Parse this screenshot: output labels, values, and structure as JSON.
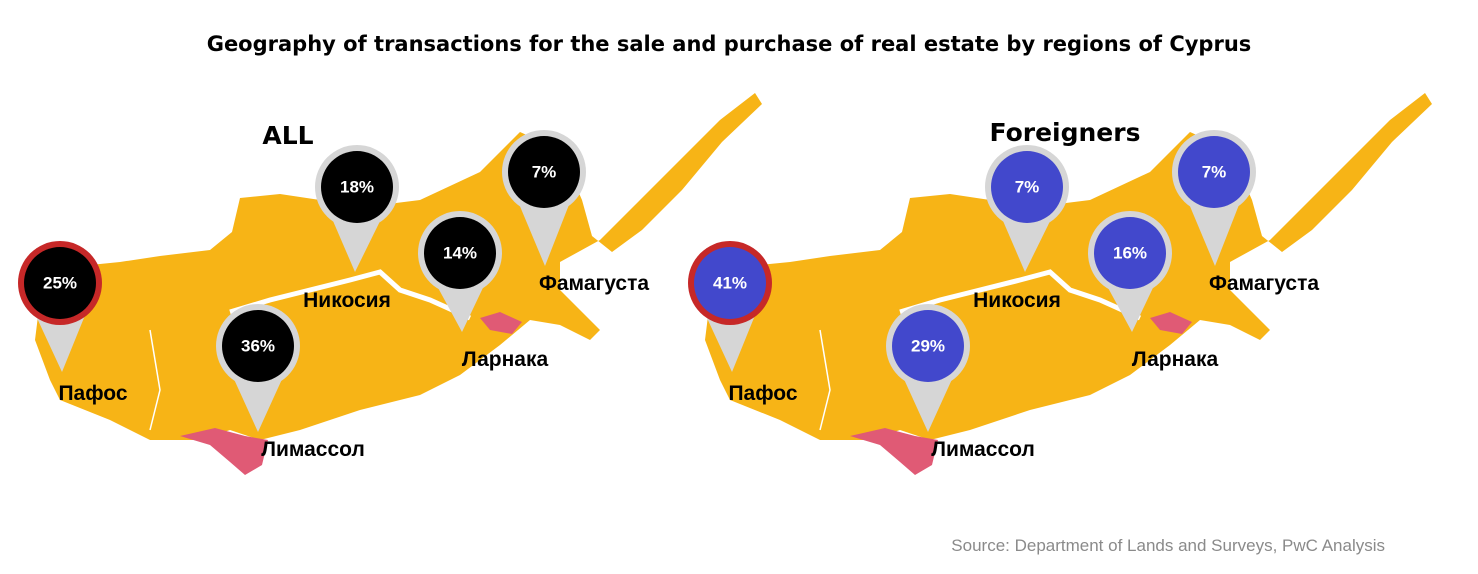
{
  "title": "Geography of transactions for the sale and purchase of real estate by regions of Cyprus",
  "source": "Source: Department of Lands and Surveys, PwC Analysis",
  "maps": [
    {
      "heading": "ALL",
      "pin_color": "#000000",
      "regions": [
        {
          "name": "Пафос",
          "share": "25%"
        },
        {
          "name": "Никосия",
          "share": "18%"
        },
        {
          "name": "Ларнака",
          "share": "14%"
        },
        {
          "name": "Фамагуста",
          "share": "7%"
        },
        {
          "name": "Лимассол",
          "share": "36%"
        }
      ]
    },
    {
      "heading": "Foreigners",
      "pin_color": "#4248cc",
      "regions": [
        {
          "name": "Пафос",
          "share": "41%"
        },
        {
          "name": "Никосия",
          "share": "7%"
        },
        {
          "name": "Ларнака",
          "share": "16%"
        },
        {
          "name": "Фамагуста",
          "share": "7%"
        },
        {
          "name": "Лимассол",
          "share": "29%"
        }
      ]
    }
  ]
}
